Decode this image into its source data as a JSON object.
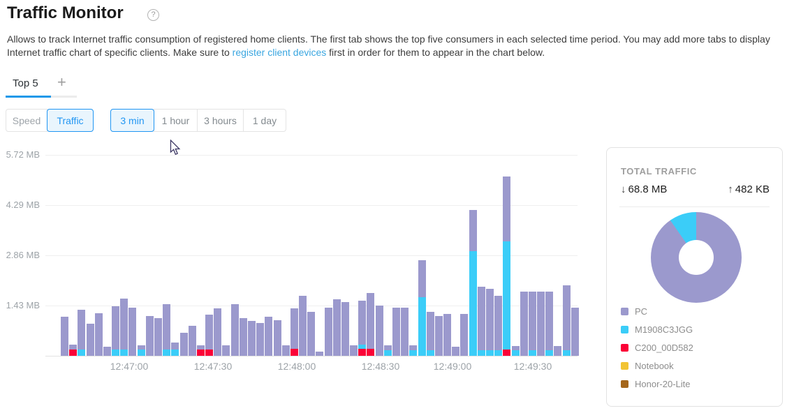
{
  "header": {
    "title": "Traffic Monitor",
    "help_icon": "?",
    "description": {
      "line1": "Allows to track Internet traffic consumption of registered home clients. The first tab shows the top five consumers in each selected time period. You may add more tabs to display",
      "line2_before_link": "Internet traffic chart of specific clients. Make sure to ",
      "link_text": "register client devices",
      "line2_after_link": " first in order for them to appear in the chart below."
    }
  },
  "tabs": {
    "items": [
      {
        "label": "Top 5",
        "active": true
      }
    ],
    "add_button": "+"
  },
  "controls": {
    "mode": {
      "options": [
        "Speed",
        "Traffic"
      ],
      "selected": "Traffic"
    },
    "period": {
      "options": [
        "3 min",
        "1 hour",
        "3 hours",
        "1 day"
      ],
      "selected": "3 min"
    }
  },
  "chart_data": {
    "type": "bar",
    "stacked": true,
    "unit": "MB",
    "title": "Top 5 traffic per client, 3 min window",
    "y_ticks": [
      "5.72 MB",
      "4.29 MB",
      "2.86 MB",
      "1.43 MB"
    ],
    "y_tick_values": [
      5.72,
      4.29,
      2.86,
      1.43
    ],
    "ylim": [
      0,
      5.72
    ],
    "grid": true,
    "x_ticks": [
      "12:47:00",
      "12:47:30",
      "12:48:00",
      "12:48:30",
      "12:49:00",
      "12:49:30"
    ],
    "series": [
      {
        "name": "PC",
        "key": "p",
        "color": "#9b99cd"
      },
      {
        "name": "M1908C3JGG",
        "key": "c",
        "color": "#3bcdf8"
      },
      {
        "name": "C200_00D582",
        "key": "r",
        "color": "#fb0237"
      }
    ],
    "stack_order": [
      "r",
      "c",
      "p"
    ],
    "bars_mb": [
      {
        "p": 1.12
      },
      {
        "r": 0.18,
        "p": 0.13
      },
      {
        "c": 0.18,
        "p": 1.13
      },
      {
        "p": 0.91
      },
      {
        "p": 1.21
      },
      {
        "p": 0.25
      },
      {
        "c": 0.18,
        "p": 1.23
      },
      {
        "c": 0.18,
        "p": 1.45
      },
      {
        "p": 1.37
      },
      {
        "c": 0.18,
        "p": 0.12
      },
      {
        "p": 1.14
      },
      {
        "p": 1.08
      },
      {
        "c": 0.18,
        "p": 1.29
      },
      {
        "c": 0.18,
        "p": 0.19
      },
      {
        "p": 0.65
      },
      {
        "p": 0.85
      },
      {
        "r": 0.18,
        "p": 0.12
      },
      {
        "r": 0.18,
        "p": 1.0
      },
      {
        "p": 1.35
      },
      {
        "p": 0.3
      },
      {
        "p": 1.47
      },
      {
        "p": 1.07
      },
      {
        "p": 1.0
      },
      {
        "p": 0.93
      },
      {
        "p": 1.11
      },
      {
        "p": 1.01
      },
      {
        "p": 0.3
      },
      {
        "r": 0.2,
        "p": 1.16
      },
      {
        "p": 1.71
      },
      {
        "p": 1.25
      },
      {
        "p": 0.12
      },
      {
        "p": 1.38
      },
      {
        "p": 1.6
      },
      {
        "p": 1.52
      },
      {
        "p": 0.3
      },
      {
        "r": 0.2,
        "c": 0.12,
        "p": 1.24
      },
      {
        "r": 0.2,
        "p": 1.58
      },
      {
        "p": 1.44
      },
      {
        "c": 0.16,
        "p": 0.14
      },
      {
        "p": 1.38
      },
      {
        "p": 1.38
      },
      {
        "c": 0.16,
        "p": 0.14
      },
      {
        "c": 1.67,
        "p": 1.06
      },
      {
        "c": 0.16,
        "p": 1.1
      },
      {
        "p": 1.14
      },
      {
        "p": 1.19
      },
      {
        "p": 0.25
      },
      {
        "p": 1.2
      },
      {
        "c": 2.97,
        "p": 1.19
      },
      {
        "c": 0.15,
        "p": 1.82
      },
      {
        "c": 0.15,
        "p": 1.75
      },
      {
        "c": 0.15,
        "p": 1.55
      },
      {
        "r": 0.17,
        "c": 3.09,
        "p": 1.85
      },
      {
        "c": 0.15,
        "p": 0.13
      },
      {
        "p": 1.82
      },
      {
        "c": 0.15,
        "p": 1.67
      },
      {
        "p": 1.82
      },
      {
        "c": 0.15,
        "p": 1.67
      },
      {
        "p": 0.28
      },
      {
        "c": 0.15,
        "p": 1.86
      },
      {
        "p": 1.37
      }
    ]
  },
  "summary": {
    "title": "TOTAL TRAFFIC",
    "download_arrow": "↓",
    "download": "68.8 MB",
    "upload_arrow": "↑",
    "upload": "482 KB",
    "donut": {
      "slices": [
        {
          "name": "PC",
          "percent": 90.3,
          "color": "#9b99cd"
        },
        {
          "name": "M1908C3JGG",
          "percent": 9.7,
          "color": "#3bcdf8"
        }
      ]
    },
    "legend": [
      {
        "label": "PC",
        "color": "#9b99cd"
      },
      {
        "label": "M1908C3JGG",
        "color": "#3bcdf8"
      },
      {
        "label": "C200_00D582",
        "color": "#fb0237"
      },
      {
        "label": "Notebook",
        "color": "#f2c434"
      },
      {
        "label": "Honor-20-Lite",
        "color": "#a4661b"
      }
    ]
  }
}
